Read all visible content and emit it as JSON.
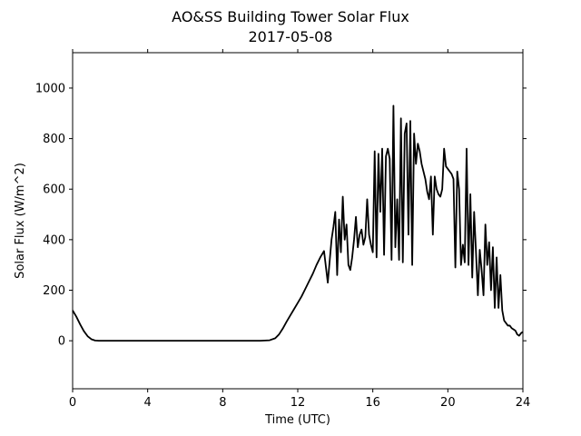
{
  "chart_data": {
    "type": "line",
    "title": "AO&SS Building Tower Solar Flux",
    "subtitle": "2017-05-08",
    "xlabel": "Time (UTC)",
    "ylabel": "Solar Flux (W/m^2)",
    "xlim": [
      0,
      24
    ],
    "ylim": [
      -190,
      1140
    ],
    "xticks": [
      0,
      4,
      8,
      12,
      16,
      20,
      24
    ],
    "yticks": [
      0,
      200,
      400,
      600,
      800,
      1000
    ],
    "grid": false,
    "legend": "none",
    "line_color": "#000000",
    "series": [
      {
        "x": [
          0,
          0.2,
          0.4,
          0.6,
          0.8,
          1.0,
          1.2,
          1.4,
          1.6,
          2,
          4,
          6,
          8,
          10,
          10.5,
          10.8,
          11.0,
          11.2,
          11.4,
          11.6,
          11.8,
          12.0,
          12.2,
          12.4,
          12.6,
          12.8,
          13.0,
          13.2,
          13.4,
          13.6,
          13.8,
          13.9,
          14.0,
          14.1,
          14.2,
          14.3,
          14.4,
          14.5,
          14.6,
          14.7,
          14.8,
          14.9,
          15.0,
          15.1,
          15.2,
          15.3,
          15.4,
          15.5,
          15.6,
          15.7,
          15.8,
          15.9,
          16.0,
          16.1,
          16.2,
          16.3,
          16.4,
          16.5,
          16.6,
          16.7,
          16.8,
          16.9,
          17.0,
          17.1,
          17.2,
          17.3,
          17.4,
          17.5,
          17.6,
          17.7,
          17.8,
          17.9,
          18.0,
          18.1,
          18.2,
          18.3,
          18.4,
          18.5,
          18.6,
          18.7,
          18.8,
          18.9,
          19.0,
          19.1,
          19.2,
          19.3,
          19.4,
          19.5,
          19.6,
          19.7,
          19.8,
          19.9,
          20.0,
          20.1,
          20.2,
          20.3,
          20.4,
          20.5,
          20.6,
          20.7,
          20.8,
          20.9,
          21.0,
          21.1,
          21.2,
          21.3,
          21.4,
          21.5,
          21.6,
          21.7,
          21.8,
          21.9,
          22.0,
          22.1,
          22.2,
          22.3,
          22.4,
          22.5,
          22.6,
          22.7,
          22.8,
          22.9,
          23.0,
          23.1,
          23.2,
          23.3,
          23.4,
          23.5,
          23.6,
          23.7,
          23.8,
          23.9,
          24.0
        ],
        "values": [
          120,
          95,
          65,
          38,
          18,
          6,
          1,
          0,
          0,
          0,
          0,
          0,
          0,
          0,
          2,
          10,
          25,
          48,
          75,
          100,
          125,
          150,
          175,
          205,
          235,
          265,
          300,
          330,
          355,
          230,
          400,
          450,
          510,
          260,
          480,
          350,
          570,
          400,
          460,
          300,
          280,
          330,
          400,
          490,
          370,
          420,
          440,
          380,
          410,
          560,
          420,
          380,
          350,
          750,
          330,
          740,
          510,
          760,
          340,
          730,
          760,
          720,
          320,
          930,
          370,
          560,
          320,
          880,
          310,
          820,
          860,
          420,
          870,
          300,
          820,
          700,
          780,
          750,
          700,
          670,
          640,
          590,
          560,
          650,
          420,
          650,
          600,
          580,
          570,
          600,
          760,
          690,
          680,
          670,
          660,
          640,
          290,
          670,
          600,
          300,
          380,
          310,
          760,
          300,
          580,
          250,
          510,
          350,
          180,
          360,
          280,
          180,
          460,
          300,
          390,
          200,
          370,
          130,
          330,
          130,
          260,
          120,
          80,
          70,
          60,
          60,
          50,
          45,
          40,
          25,
          20,
          30,
          35
        ]
      }
    ]
  }
}
